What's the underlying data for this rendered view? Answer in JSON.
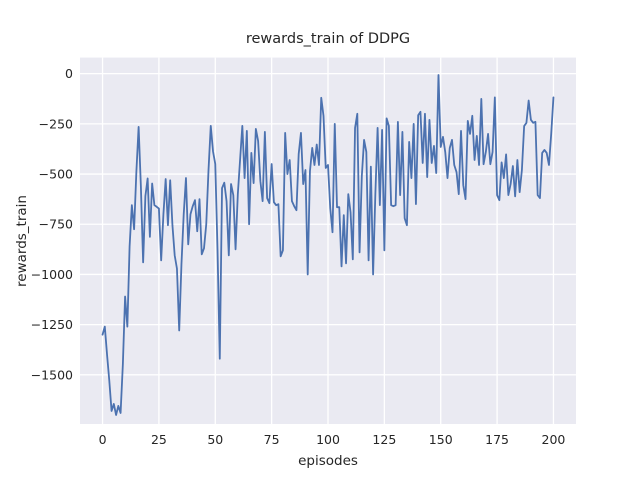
{
  "chart_data": {
    "type": "line",
    "title": "rewards_train of DDPG",
    "xlabel": "episodes",
    "ylabel": "rewards_train",
    "x_ticks": [
      0,
      25,
      50,
      75,
      100,
      125,
      150,
      175,
      200
    ],
    "x_tick_labels": [
      "0",
      "25",
      "50",
      "75",
      "100",
      "125",
      "150",
      "175",
      "200"
    ],
    "y_ticks": [
      0,
      -250,
      -500,
      -750,
      -1000,
      -1250,
      -1500
    ],
    "y_tick_labels": [
      "0",
      "−250",
      "−500",
      "−750",
      "−1000",
      "−1250",
      "−1500"
    ],
    "xlim": [
      -10,
      210
    ],
    "ylim": [
      -1745,
      80
    ],
    "grid": true,
    "legend": false,
    "colors": {
      "figure_bg": "#FFFFFF",
      "axes_bg": "#EAEAF2",
      "grid": "#FFFFFF",
      "line": "#4C72B0",
      "text": "#262626"
    },
    "series": [
      {
        "name": "rewards_train",
        "color": "#4C72B0",
        "x_start": 0,
        "x_step": 1,
        "values": [
          -1300,
          -1260,
          -1400,
          -1530,
          -1680,
          -1645,
          -1700,
          -1655,
          -1690,
          -1450,
          -1110,
          -1260,
          -860,
          -655,
          -775,
          -490,
          -265,
          -560,
          -940,
          -610,
          -522,
          -813,
          -547,
          -655,
          -663,
          -672,
          -930,
          -700,
          -525,
          -755,
          -531,
          -755,
          -905,
          -971,
          -1279,
          -950,
          -700,
          -520,
          -850,
          -700,
          -660,
          -630,
          -785,
          -625,
          -900,
          -870,
          -750,
          -480,
          -260,
          -387,
          -450,
          -880,
          -1420,
          -570,
          -543,
          -635,
          -905,
          -550,
          -605,
          -875,
          -600,
          -430,
          -260,
          -520,
          -285,
          -750,
          -395,
          -545,
          -275,
          -335,
          -535,
          -635,
          -290,
          -620,
          -645,
          -450,
          -640,
          -655,
          -650,
          -910,
          -880,
          -295,
          -500,
          -430,
          -635,
          -660,
          -680,
          -400,
          -295,
          -550,
          -480,
          -1000,
          -485,
          -370,
          -455,
          -353,
          -455,
          -120,
          -210,
          -470,
          -455,
          -670,
          -790,
          -250,
          -665,
          -665,
          -960,
          -705,
          -945,
          -600,
          -690,
          -925,
          -270,
          -200,
          -890,
          -510,
          -330,
          -390,
          -930,
          -463,
          -1000,
          -600,
          -270,
          -655,
          -280,
          -880,
          -223,
          -260,
          -655,
          -660,
          -655,
          -240,
          -605,
          -290,
          -720,
          -755,
          -340,
          -520,
          -250,
          -650,
          -207,
          -190,
          -445,
          -200,
          -515,
          -230,
          -445,
          -360,
          -495,
          -7,
          -365,
          -315,
          -390,
          -520,
          -370,
          -330,
          -455,
          -490,
          -600,
          -285,
          -555,
          -625,
          -235,
          -300,
          -210,
          -430,
          -310,
          -455,
          -126,
          -451,
          -390,
          -300,
          -451,
          -390,
          -118,
          -605,
          -630,
          -442,
          -520,
          -402,
          -605,
          -550,
          -460,
          -611,
          -430,
          -590,
          -480,
          -261,
          -245,
          -134,
          -230,
          -245,
          -240,
          -605,
          -620,
          -395,
          -380,
          -395,
          -455,
          -300,
          -118
        ]
      }
    ]
  }
}
